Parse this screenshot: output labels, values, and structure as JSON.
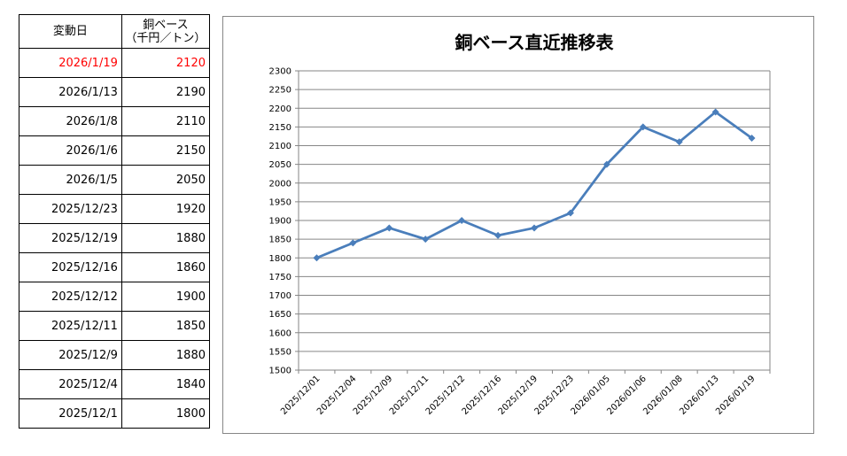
{
  "table": {
    "headers": [
      "変動日",
      "銅ベース\n（千円／トン）"
    ],
    "rows": [
      {
        "date": "2026/1/19",
        "value": "2120",
        "highlight": true
      },
      {
        "date": "2026/1/13",
        "value": "2190"
      },
      {
        "date": "2026/1/8",
        "value": "2110"
      },
      {
        "date": "2026/1/6",
        "value": "2150"
      },
      {
        "date": "2026/1/5",
        "value": "2050"
      },
      {
        "date": "2025/12/23",
        "value": "1920"
      },
      {
        "date": "2025/12/19",
        "value": "1880"
      },
      {
        "date": "2025/12/16",
        "value": "1860"
      },
      {
        "date": "2025/12/12",
        "value": "1900"
      },
      {
        "date": "2025/12/11",
        "value": "1850"
      },
      {
        "date": "2025/12/9",
        "value": "1880"
      },
      {
        "date": "2025/12/4",
        "value": "1840"
      },
      {
        "date": "2025/12/1",
        "value": "1800"
      }
    ],
    "highlight_color": "#ff0000"
  },
  "chart_data": {
    "type": "line",
    "title": "銅ベース直近推移表",
    "xlabel": "",
    "ylabel": "",
    "categories": [
      "2025/12/01",
      "2025/12/04",
      "2025/12/09",
      "2025/12/11",
      "2025/12/12",
      "2025/12/16",
      "2025/12/19",
      "2025/12/23",
      "2026/01/05",
      "2026/01/06",
      "2026/01/08",
      "2026/01/13",
      "2026/01/19"
    ],
    "series": [
      {
        "values": [
          1800,
          1840,
          1880,
          1850,
          1900,
          1860,
          1880,
          1920,
          2050,
          2150,
          2110,
          2190,
          2120
        ],
        "color": "#4a7ebb"
      }
    ],
    "ylim": [
      1500,
      2300
    ],
    "ytick_step": 50,
    "grid": true,
    "legend": "none"
  }
}
